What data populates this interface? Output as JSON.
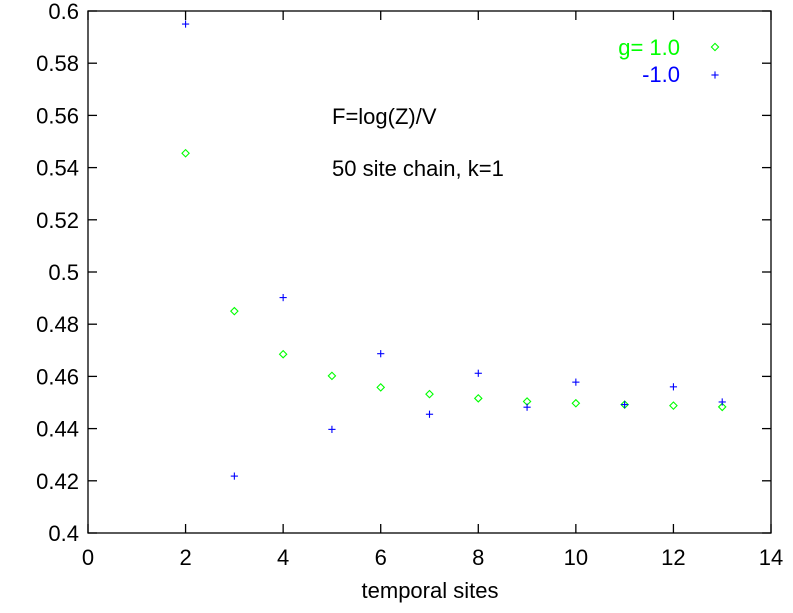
{
  "chart_data": {
    "type": "scatter",
    "title": "",
    "xlabel": "temporal sites",
    "ylabel": "",
    "xlim": [
      0,
      14
    ],
    "ylim": [
      0.4,
      0.6
    ],
    "x_ticks": [
      "0",
      "2",
      "4",
      "6",
      "8",
      "10",
      "12",
      "14"
    ],
    "y_ticks": [
      "0.4",
      "0.42",
      "0.44",
      "0.46",
      "0.48",
      "0.5",
      "0.52",
      "0.54",
      "0.56",
      "0.58",
      "0.6"
    ],
    "grid": false,
    "legend_position": "top-right",
    "annotations": [
      "F=log(Z)/V",
      "50 site chain, k=1"
    ],
    "series": [
      {
        "name": "g= 1.0",
        "marker": "diamond",
        "color": "#00ff00",
        "x": [
          2,
          3,
          4,
          5,
          6,
          7,
          8,
          9,
          10,
          11,
          12,
          13
        ],
        "y": [
          0.5455,
          0.485,
          0.4685,
          0.4602,
          0.4558,
          0.4532,
          0.4516,
          0.4504,
          0.4497,
          0.4492,
          0.4488,
          0.4483
        ]
      },
      {
        "name": "-1.0",
        "marker": "plus",
        "color": "#0000ff",
        "x": [
          2,
          3,
          4,
          5,
          6,
          7,
          8,
          9,
          10,
          11,
          12,
          13
        ],
        "y": [
          0.595,
          0.4218,
          0.4902,
          0.4397,
          0.4687,
          0.4455,
          0.4612,
          0.4482,
          0.4578,
          0.4492,
          0.456,
          0.4502
        ]
      }
    ]
  }
}
